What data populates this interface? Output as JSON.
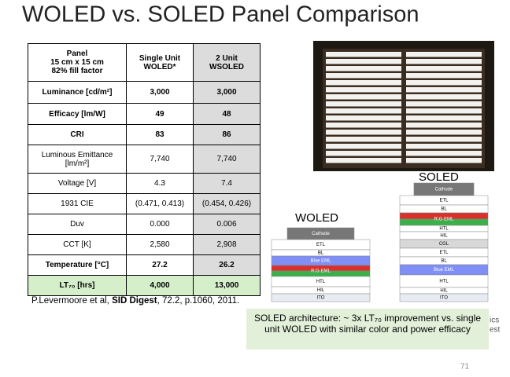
{
  "title": "WOLED vs. SOLED Panel Comparison",
  "table": {
    "header": [
      [
        "Panel",
        "15 cm x 15 cm",
        "82% fill factor"
      ],
      [
        "Single Unit",
        "WOLED*"
      ],
      [
        "2 Unit",
        "WSOLED"
      ]
    ],
    "rows": [
      [
        "Luminance [cd/m²]",
        "3,000",
        "3,000"
      ],
      [
        "Efficacy [lm/W]",
        "49",
        "48"
      ],
      [
        "CRI",
        "83",
        "86"
      ],
      [
        [
          "Luminous Emittance",
          "[lm/m²]"
        ],
        "7,740",
        "7,740"
      ],
      [
        "Voltage [V]",
        "4.3",
        "7.4"
      ],
      [
        "1931 CIE",
        "(0.471, 0.413)",
        "(0.454, 0.426)"
      ],
      [
        "Duv",
        "0.000",
        "0.006"
      ],
      [
        "CCT [K]",
        "2,580",
        "2,908"
      ],
      [
        "Temperature [°C]",
        "27.2",
        "26.2"
      ],
      [
        "LT₇₀ [hrs]",
        "4,000",
        "13,000"
      ]
    ]
  },
  "citation": {
    "authors": "P.Levermoore et al, ",
    "journal": "SID Digest",
    "rest": ", 72.2, p.1060, 2011."
  },
  "soled": {
    "label": "SOLED",
    "layers": [
      "Cathode",
      "ETL",
      "BL",
      "R:G EML",
      "HTL",
      "HIL",
      "CGL",
      "ETL",
      "BL",
      "Blue EML",
      "HTL",
      "HIL",
      "ITO"
    ]
  },
  "woled": {
    "label": "WOLED",
    "layers": [
      "Cathode",
      "ETL",
      "BL",
      "Blue EML",
      "R:G EML",
      "HTL",
      "HIL",
      "ITO"
    ]
  },
  "callout": [
    "SOLED architecture: ~ 3x LT₇₀ improvement vs. single",
    "unit WOLED with similar color and power efficacy"
  ],
  "fragments": [
    "ics",
    "est"
  ],
  "page_number": "71"
}
